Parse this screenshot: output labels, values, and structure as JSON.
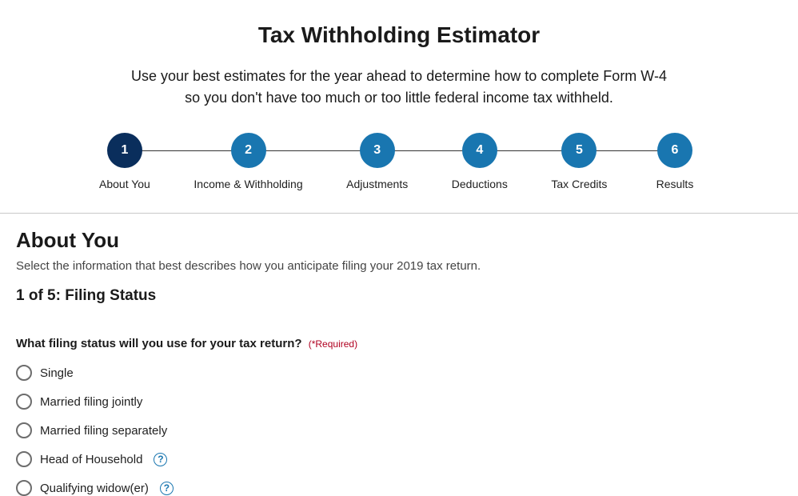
{
  "header": {
    "title": "Tax Withholding Estimator",
    "subtitle": "Use your best estimates for the year ahead to determine how to complete Form W-4 so you don't have too much or too little federal income tax withheld."
  },
  "stepper": {
    "active_index": 0,
    "active_color": "#0a2e5c",
    "inactive_color": "#1976b0",
    "steps": [
      {
        "num": "1",
        "label": "About You"
      },
      {
        "num": "2",
        "label": "Income & Withholding"
      },
      {
        "num": "3",
        "label": "Adjustments"
      },
      {
        "num": "4",
        "label": "Deductions"
      },
      {
        "num": "5",
        "label": "Tax Credits"
      },
      {
        "num": "6",
        "label": "Results"
      }
    ]
  },
  "section": {
    "heading": "About You",
    "description": "Select the information that best describes how you anticipate filing your 2019 tax return.",
    "substep": "1 of 5: Filing Status"
  },
  "question": {
    "text": "What filing status will you use for your tax return?",
    "required_label": "(*Required)"
  },
  "filing_status_options": [
    {
      "label": "Single",
      "help": false
    },
    {
      "label": "Married filing jointly",
      "help": false
    },
    {
      "label": "Married filing separately",
      "help": false
    },
    {
      "label": "Head of Household",
      "help": true
    },
    {
      "label": "Qualifying widow(er)",
      "help": true
    }
  ],
  "colors": {
    "required": "#b00020",
    "help_icon": "#1976b0"
  }
}
